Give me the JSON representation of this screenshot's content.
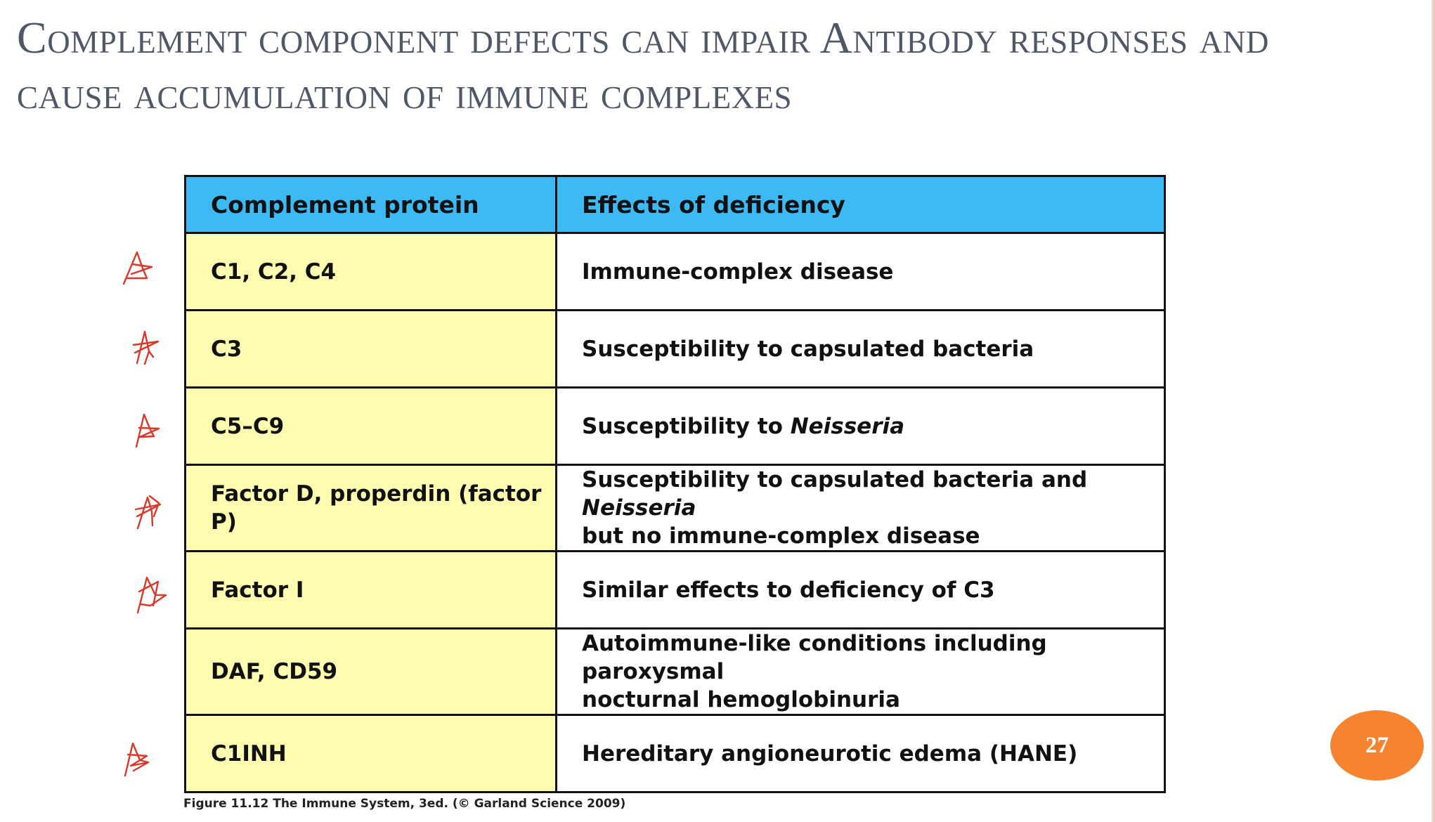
{
  "slide": {
    "title": "Complement component defects can impair Antibody responses and cause accumulation of immune complexes",
    "page_number": "27"
  },
  "table": {
    "headers": {
      "protein": "Complement protein",
      "effects": "Effects of deficiency"
    },
    "rows": [
      {
        "protein": "C1, C2, C4",
        "effect": "Immune-complex disease",
        "marked": true
      },
      {
        "protein": "C3",
        "effect": "Susceptibility to capsulated bacteria",
        "marked": true
      },
      {
        "protein": "C5–C9",
        "effect_parts": [
          "Susceptibility to ",
          "Neisseria"
        ],
        "marked": true
      },
      {
        "protein": "Factor D, properdin (factor P)",
        "effect_parts": [
          "Susceptibility to capsulated bacteria and ",
          "Neisseria",
          "but no immune-complex disease"
        ],
        "marked": true
      },
      {
        "protein": "Factor I",
        "effect": "Similar effects to deficiency of C3",
        "marked": true
      },
      {
        "protein": "DAF, CD59",
        "effect_lines": [
          "Autoimmune-like conditions including paroxysmal",
          "nocturnal hemoglobinuria"
        ],
        "marked": false
      },
      {
        "protein": "C1INH",
        "effect": "Hereditary angioneurotic edema (HANE)",
        "marked": true
      }
    ],
    "caption": "Figure 11.12 The Immune System, 3ed. (© Garland Science 2009)"
  },
  "colors": {
    "title": "#505868",
    "header_fill": "#3dbaf3",
    "protein_fill": "#fdfcb0",
    "annotation_ink": "#d8392b",
    "page_badge": "#f5832f"
  },
  "icons": {
    "row_marks": "handwritten-star-mark-icon"
  }
}
